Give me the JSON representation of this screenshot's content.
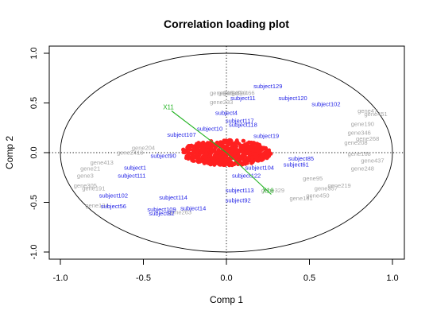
{
  "chart_data": {
    "type": "scatter",
    "title": "Correlation loading plot",
    "xlabel": "Comp 1",
    "ylabel": "Comp 2",
    "xlim": [
      -1.0,
      1.0
    ],
    "ylim": [
      -1.0,
      1.0
    ],
    "xticks": [
      "-1.0",
      "-0.5",
      "0.0",
      "0.5",
      "1.0"
    ],
    "yticks": [
      "-1.0",
      "-0.5",
      "0.0",
      "0.5",
      "1.0"
    ],
    "unit_circle": true,
    "reference_lines": {
      "x": 0,
      "y": 0,
      "style": "dotted"
    },
    "colors": {
      "genes": "#a6a6a6",
      "subjects": "#1f1fe6",
      "variables": "#22b322",
      "dense_cloud": "#ff2020"
    },
    "gene_labels": [
      {
        "label": "gene246",
        "x": -0.03,
        "y": 0.58
      },
      {
        "label": "gene242",
        "x": 0.02,
        "y": 0.58
      },
      {
        "label": "gene420",
        "x": 0.05,
        "y": 0.58
      },
      {
        "label": "gene233",
        "x": -0.03,
        "y": 0.49
      },
      {
        "label": "gene466",
        "x": 0.1,
        "y": 0.58
      },
      {
        "label": "gene204",
        "x": -0.5,
        "y": 0.03
      },
      {
        "label": "gene2413",
        "x": -0.58,
        "y": -0.02
      },
      {
        "label": "gene413",
        "x": -0.75,
        "y": -0.12
      },
      {
        "label": "gene21",
        "x": -0.82,
        "y": -0.18
      },
      {
        "label": "gene3",
        "x": -0.85,
        "y": -0.25
      },
      {
        "label": "gene305",
        "x": -0.85,
        "y": -0.35
      },
      {
        "label": "gene191",
        "x": -0.8,
        "y": -0.38
      },
      {
        "label": "gene124",
        "x": -0.78,
        "y": -0.55
      },
      {
        "label": "gene263",
        "x": -0.28,
        "y": -0.62
      },
      {
        "label": "gene451",
        "x": 0.9,
        "y": 0.37
      },
      {
        "label": "gene47",
        "x": 0.85,
        "y": 0.4
      },
      {
        "label": "gene190",
        "x": 0.82,
        "y": 0.27
      },
      {
        "label": "gene346",
        "x": 0.8,
        "y": 0.18
      },
      {
        "label": "gene268",
        "x": 0.85,
        "y": 0.12
      },
      {
        "label": "gene208",
        "x": 0.78,
        "y": 0.08
      },
      {
        "label": "gene168",
        "x": 0.8,
        "y": -0.03
      },
      {
        "label": "gene248",
        "x": 0.82,
        "y": -0.18
      },
      {
        "label": "gene437",
        "x": 0.88,
        "y": -0.1
      },
      {
        "label": "gene219",
        "x": 0.68,
        "y": -0.35
      },
      {
        "label": "gene357",
        "x": 0.6,
        "y": -0.38
      },
      {
        "label": "gene450",
        "x": 0.55,
        "y": -0.45
      },
      {
        "label": "gene161",
        "x": 0.45,
        "y": -0.48
      },
      {
        "label": "gene329",
        "x": 0.28,
        "y": -0.4
      },
      {
        "label": "gene95",
        "x": 0.52,
        "y": -0.28
      }
    ],
    "subject_labels": [
      {
        "label": "subject129",
        "x": 0.25,
        "y": 0.65
      },
      {
        "label": "subject11",
        "x": 0.1,
        "y": 0.53
      },
      {
        "label": "subject120",
        "x": 0.4,
        "y": 0.53
      },
      {
        "label": "subject102",
        "x": 0.6,
        "y": 0.47
      },
      {
        "label": "subject4",
        "x": 0.0,
        "y": 0.38
      },
      {
        "label": "subject117",
        "x": 0.08,
        "y": 0.3
      },
      {
        "label": "subject118",
        "x": 0.1,
        "y": 0.26
      },
      {
        "label": "subject10",
        "x": -0.1,
        "y": 0.22
      },
      {
        "label": "subject107",
        "x": -0.27,
        "y": 0.16
      },
      {
        "label": "subject19",
        "x": 0.24,
        "y": 0.15
      },
      {
        "label": "subject90",
        "x": -0.38,
        "y": -0.05
      },
      {
        "label": "subject1",
        "x": -0.55,
        "y": -0.17
      },
      {
        "label": "subject111",
        "x": -0.57,
        "y": -0.25
      },
      {
        "label": "subject104",
        "x": 0.2,
        "y": -0.17
      },
      {
        "label": "subject85",
        "x": 0.45,
        "y": -0.08
      },
      {
        "label": "subject61",
        "x": 0.42,
        "y": -0.14
      },
      {
        "label": "subject122",
        "x": 0.12,
        "y": -0.25
      },
      {
        "label": "subject113",
        "x": 0.08,
        "y": -0.4
      },
      {
        "label": "subject102",
        "x": -0.68,
        "y": -0.45
      },
      {
        "label": "subject114",
        "x": -0.32,
        "y": -0.47
      },
      {
        "label": "subject92",
        "x": 0.07,
        "y": -0.5
      },
      {
        "label": "subject56",
        "x": -0.68,
        "y": -0.56
      },
      {
        "label": "subject14",
        "x": -0.2,
        "y": -0.58
      },
      {
        "label": "subject109",
        "x": -0.39,
        "y": -0.59
      },
      {
        "label": "subject82",
        "x": -0.39,
        "y": -0.63
      }
    ],
    "variable_arrows": [
      {
        "label": "X11",
        "x": -0.33,
        "y": 0.42
      },
      {
        "label": "X16",
        "x": 0.27,
        "y": -0.42
      }
    ]
  }
}
